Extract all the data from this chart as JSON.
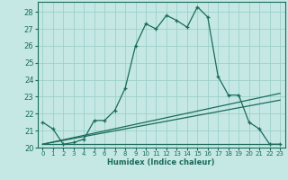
{
  "xlabel": "Humidex (Indice chaleur)",
  "background_color": "#c5e8e5",
  "grid_color": "#9dcfcc",
  "line_color": "#1a6b5a",
  "ylim": [
    20,
    28.6
  ],
  "xlim": [
    -0.5,
    23.5
  ],
  "yticks": [
    20,
    21,
    22,
    23,
    24,
    25,
    26,
    27,
    28
  ],
  "xticks": [
    0,
    1,
    2,
    3,
    4,
    5,
    6,
    7,
    8,
    9,
    10,
    11,
    12,
    13,
    14,
    15,
    16,
    17,
    18,
    19,
    20,
    21,
    22,
    23
  ],
  "main_line_x": [
    0,
    1,
    2,
    3,
    4,
    5,
    6,
    7,
    8,
    9,
    10,
    11,
    12,
    13,
    14,
    15,
    16,
    17,
    18,
    19,
    20,
    21,
    22,
    23
  ],
  "main_line_y": [
    21.5,
    21.1,
    20.2,
    20.3,
    20.5,
    21.6,
    21.6,
    22.2,
    23.5,
    26.0,
    27.3,
    27.0,
    27.8,
    27.5,
    27.1,
    28.3,
    27.7,
    24.2,
    23.1,
    23.1,
    21.5,
    21.1,
    20.2,
    20.2
  ],
  "flat_line_x": [
    0,
    23
  ],
  "flat_line_y": [
    20.2,
    20.2
  ],
  "linear_line1_x": [
    0,
    23
  ],
  "linear_line1_y": [
    20.2,
    23.2
  ],
  "linear_line2_x": [
    0,
    23
  ],
  "linear_line2_y": [
    20.2,
    22.8
  ]
}
